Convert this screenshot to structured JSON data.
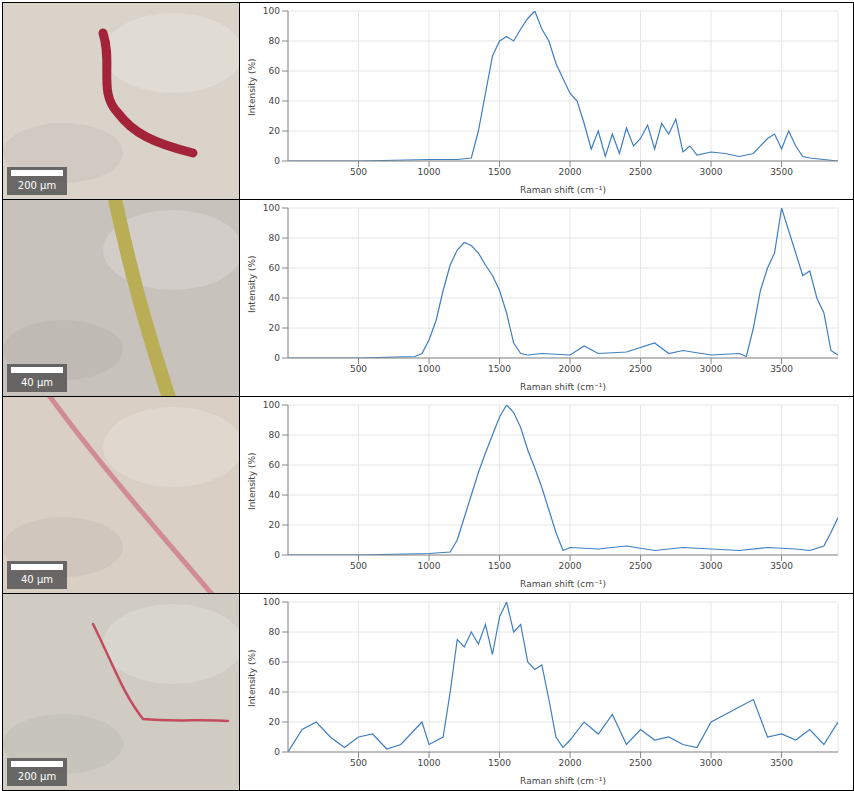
{
  "chart_data": [
    {
      "type": "line",
      "annotation": "200 µm",
      "x_label": "Raman shift (cm⁻¹)",
      "y_label": "Intensity (%)",
      "xlim": [
        0,
        3900
      ],
      "xticks": [
        500,
        1000,
        1500,
        2000,
        2500,
        3000,
        3500
      ],
      "ylim": [
        0,
        100
      ],
      "yticks": [
        0,
        20,
        40,
        60,
        80,
        100
      ],
      "grid": true,
      "color": "#3f7fc1",
      "x": [
        0,
        500,
        1000,
        1200,
        1300,
        1350,
        1400,
        1450,
        1500,
        1550,
        1600,
        1650,
        1700,
        1750,
        1800,
        1850,
        1900,
        1950,
        2000,
        2050,
        2100,
        2150,
        2200,
        2250,
        2300,
        2350,
        2400,
        2450,
        2500,
        2550,
        2600,
        2650,
        2700,
        2750,
        2800,
        2850,
        2900,
        3000,
        3100,
        3200,
        3300,
        3400,
        3450,
        3500,
        3550,
        3600,
        3650,
        3700,
        3800,
        3900
      ],
      "values": [
        0,
        0,
        1,
        1,
        2,
        20,
        45,
        70,
        80,
        83,
        80,
        88,
        95,
        100,
        88,
        80,
        65,
        55,
        45,
        40,
        25,
        8,
        20,
        3,
        18,
        5,
        22,
        10,
        15,
        24,
        8,
        25,
        18,
        28,
        6,
        10,
        4,
        6,
        5,
        3,
        5,
        15,
        18,
        8,
        20,
        10,
        3,
        2,
        1,
        0
      ]
    },
    {
      "type": "line",
      "annotation": "40 µm",
      "x_label": "Raman shift (cm⁻¹)",
      "y_label": "Intensity (%)",
      "xlim": [
        0,
        3900
      ],
      "xticks": [
        500,
        1000,
        1500,
        2000,
        2500,
        3000,
        3500
      ],
      "ylim": [
        0,
        100
      ],
      "yticks": [
        0,
        20,
        40,
        60,
        80,
        100
      ],
      "grid": true,
      "color": "#3f7fc1",
      "x": [
        0,
        500,
        900,
        950,
        1000,
        1050,
        1100,
        1150,
        1200,
        1250,
        1300,
        1350,
        1400,
        1450,
        1500,
        1550,
        1600,
        1650,
        1700,
        1800,
        2000,
        2100,
        2200,
        2400,
        2600,
        2700,
        2800,
        3000,
        3200,
        3250,
        3300,
        3350,
        3400,
        3450,
        3500,
        3550,
        3600,
        3650,
        3700,
        3750,
        3800,
        3850,
        3900
      ],
      "values": [
        0,
        0,
        1,
        3,
        12,
        25,
        45,
        62,
        72,
        77,
        75,
        70,
        62,
        55,
        45,
        30,
        10,
        3,
        2,
        3,
        2,
        8,
        3,
        4,
        10,
        3,
        5,
        2,
        3,
        1,
        20,
        45,
        60,
        70,
        100,
        85,
        70,
        55,
        58,
        40,
        30,
        5,
        2
      ]
    },
    {
      "type": "line",
      "annotation": "40 µm",
      "x_label": "Raman shift (cm⁻¹)",
      "y_label": "Intensity (%)",
      "xlim": [
        0,
        3900
      ],
      "xticks": [
        500,
        1000,
        1500,
        2000,
        2500,
        3000,
        3500
      ],
      "ylim": [
        0,
        100
      ],
      "yticks": [
        0,
        20,
        40,
        60,
        80,
        100
      ],
      "grid": true,
      "color": "#3f7fc1",
      "x": [
        0,
        500,
        1000,
        1150,
        1200,
        1250,
        1300,
        1350,
        1400,
        1450,
        1500,
        1550,
        1600,
        1650,
        1700,
        1750,
        1800,
        1850,
        1900,
        1950,
        2000,
        2200,
        2400,
        2600,
        2800,
        3000,
        3200,
        3400,
        3600,
        3700,
        3800,
        3850,
        3900
      ],
      "values": [
        0,
        0,
        1,
        2,
        10,
        25,
        40,
        55,
        68,
        80,
        92,
        100,
        95,
        85,
        70,
        58,
        45,
        30,
        15,
        3,
        5,
        4,
        6,
        3,
        5,
        4,
        3,
        5,
        4,
        3,
        6,
        15,
        25
      ]
    },
    {
      "type": "line",
      "annotation": "200 µm",
      "x_label": "Raman shift (cm⁻¹)",
      "y_label": "Intensity (%)",
      "xlim": [
        0,
        3900
      ],
      "xticks": [
        500,
        1000,
        1500,
        2000,
        2500,
        3000,
        3500
      ],
      "ylim": [
        0,
        100
      ],
      "yticks": [
        0,
        20,
        40,
        60,
        80,
        100
      ],
      "grid": true,
      "color": "#3f7fc1",
      "x": [
        0,
        100,
        200,
        300,
        400,
        500,
        600,
        700,
        800,
        900,
        950,
        1000,
        1100,
        1150,
        1200,
        1250,
        1300,
        1350,
        1400,
        1450,
        1500,
        1550,
        1600,
        1650,
        1700,
        1750,
        1800,
        1850,
        1900,
        1950,
        2000,
        2100,
        2200,
        2300,
        2400,
        2500,
        2600,
        2700,
        2800,
        2900,
        3000,
        3100,
        3200,
        3300,
        3400,
        3500,
        3600,
        3700,
        3800,
        3900
      ],
      "values": [
        0,
        15,
        20,
        10,
        3,
        10,
        12,
        2,
        5,
        15,
        20,
        5,
        10,
        40,
        75,
        70,
        80,
        72,
        85,
        65,
        90,
        100,
        80,
        85,
        60,
        55,
        58,
        35,
        10,
        3,
        8,
        20,
        12,
        25,
        5,
        15,
        8,
        10,
        5,
        3,
        20,
        25,
        30,
        35,
        10,
        12,
        8,
        15,
        5,
        20
      ]
    }
  ]
}
